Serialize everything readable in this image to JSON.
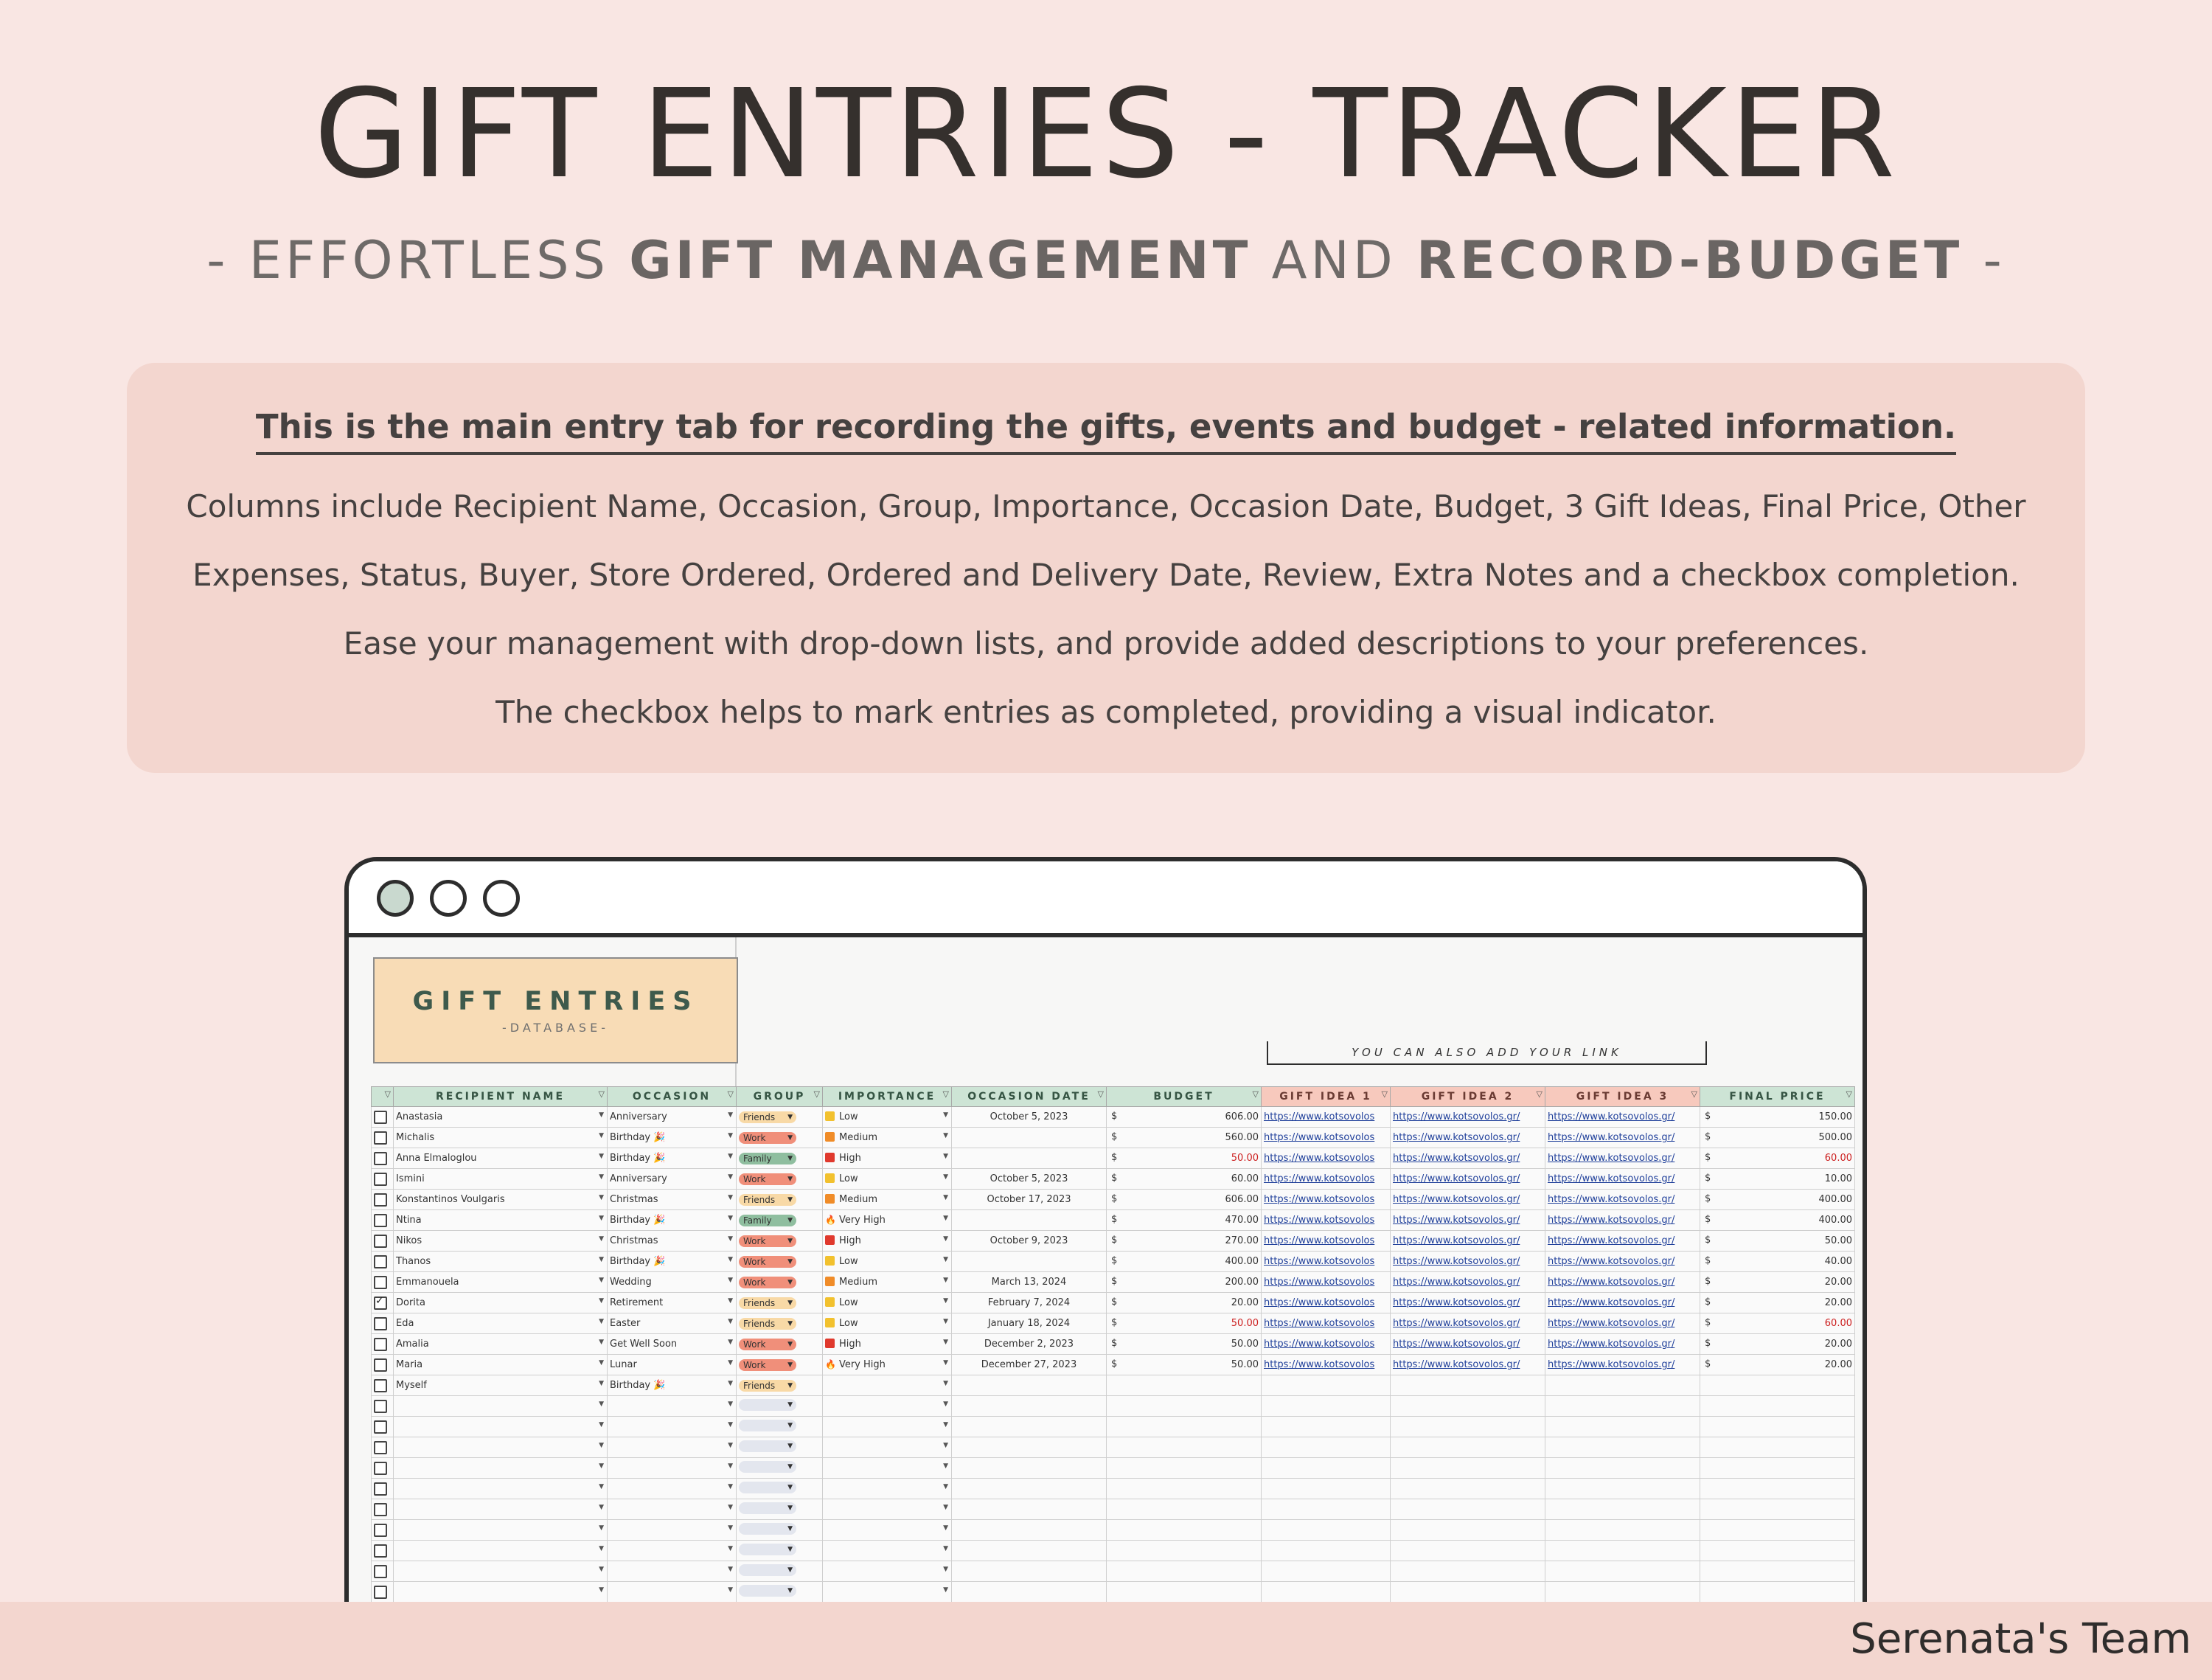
{
  "hero": {
    "title": "GIFT ENTRIES - TRACKER",
    "subtitle_pre": "- EFFORTLESS ",
    "subtitle_b1": "GIFT MANAGEMENT",
    "subtitle_mid": " AND ",
    "subtitle_b2": "RECORD-BUDGET",
    "subtitle_post": " -"
  },
  "info": {
    "heading": "This is the main entry tab for recording the gifts, events and budget - related information.",
    "lines": [
      "Columns include Recipient Name, Occasion, Group, Importance, Occasion Date, Budget, 3 Gift Ideas, Final Price, Other",
      "Expenses, Status, Buyer, Store Ordered, Ordered and Delivery Date, Review, Extra Notes and a checkbox completion.",
      "Ease your management with drop-down lists, and provide added descriptions to your preferences.",
      "The checkbox helps to mark entries as completed, providing a visual indicator."
    ]
  },
  "sheet": {
    "logo_title": "GIFT ENTRIES",
    "logo_sub": "-DATABASE-",
    "link_note": "YOU CAN ALSO ADD YOUR LINK",
    "headers": [
      "RECIPIENT NAME",
      "OCCASION",
      "GROUP",
      "IMPORTANCE",
      "OCCASION DATE",
      "BUDGET",
      "GIFT IDEA 1",
      "GIFT IDEA 2",
      "GIFT IDEA 3",
      "FINAL PRICE"
    ],
    "currency": "$",
    "link_text": "https://www.kotsovolos.gr/",
    "link_text_short": "https://www.kotsovolos",
    "rows": [
      {
        "done": false,
        "name": "Anastasia",
        "occasion": "Anniversary",
        "group": "Friends",
        "importance": "Low",
        "date": "October 5, 2023",
        "budget": "606.00",
        "final": "150.00",
        "budget_red": false,
        "final_red": false
      },
      {
        "done": false,
        "name": "Michalis",
        "occasion": "Birthday 🎉",
        "group": "Work",
        "importance": "Medium",
        "date": "",
        "budget": "560.00",
        "final": "500.00",
        "budget_red": false,
        "final_red": false
      },
      {
        "done": false,
        "name": "Anna Elmaloglou",
        "occasion": "Birthday 🎉",
        "group": "Family",
        "importance": "High",
        "date": "",
        "budget": "50.00",
        "final": "60.00",
        "budget_red": true,
        "final_red": true
      },
      {
        "done": false,
        "name": "Ismini",
        "occasion": "Anniversary",
        "group": "Work",
        "importance": "Low",
        "date": "October 5, 2023",
        "budget": "60.00",
        "final": "10.00",
        "budget_red": false,
        "final_red": false
      },
      {
        "done": false,
        "name": "Konstantinos Voulgaris",
        "occasion": "Christmas",
        "group": "Friends",
        "importance": "Medium",
        "date": "October 17, 2023",
        "budget": "606.00",
        "final": "400.00",
        "budget_red": false,
        "final_red": false
      },
      {
        "done": false,
        "name": "Ntina",
        "occasion": "Birthday 🎉",
        "group": "Family",
        "importance": "Very High",
        "date": "",
        "budget": "470.00",
        "final": "400.00",
        "budget_red": false,
        "final_red": false
      },
      {
        "done": false,
        "name": "Nikos",
        "occasion": "Christmas",
        "group": "Work",
        "importance": "High",
        "date": "October 9, 2023",
        "budget": "270.00",
        "final": "50.00",
        "budget_red": false,
        "final_red": false
      },
      {
        "done": false,
        "name": "Thanos",
        "occasion": "Birthday 🎉",
        "group": "Work",
        "importance": "Low",
        "date": "",
        "budget": "400.00",
        "final": "40.00",
        "budget_red": false,
        "final_red": false
      },
      {
        "done": false,
        "name": "Emmanouela",
        "occasion": "Wedding",
        "group": "Work",
        "importance": "Medium",
        "date": "March 13, 2024",
        "budget": "200.00",
        "final": "20.00",
        "budget_red": false,
        "final_red": false
      },
      {
        "done": true,
        "name": "Dorita",
        "occasion": "Retirement",
        "group": "Friends",
        "importance": "Low",
        "date": "February 7, 2024",
        "budget": "20.00",
        "final": "20.00",
        "budget_red": false,
        "final_red": false
      },
      {
        "done": false,
        "name": "Eda",
        "occasion": "Easter",
        "group": "Friends",
        "importance": "Low",
        "date": "January 18, 2024",
        "budget": "50.00",
        "final": "60.00",
        "budget_red": true,
        "final_red": true
      },
      {
        "done": false,
        "name": "Amalia",
        "occasion": "Get Well Soon",
        "group": "Work",
        "importance": "High",
        "date": "December 2, 2023",
        "budget": "50.00",
        "final": "20.00",
        "budget_red": false,
        "final_red": false
      },
      {
        "done": false,
        "name": "Maria",
        "occasion": "Lunar",
        "group": "Work",
        "importance": "Very High",
        "date": "December 27, 2023",
        "budget": "50.00",
        "final": "20.00",
        "budget_red": false,
        "final_red": false
      },
      {
        "done": false,
        "name": "Myself",
        "occasion": "Birthday 🎉",
        "group": "Friends",
        "importance": "",
        "date": "",
        "budget": "",
        "final": "",
        "budget_red": false,
        "final_red": false
      }
    ],
    "empty_rows": 10
  },
  "colors": {
    "group": {
      "Friends": "#f8d9a6",
      "Work": "#f08f7a",
      "Family": "#8fbe9f",
      "empty": "#e3e6ee"
    },
    "importance": {
      "Low": "#f2c12e",
      "Medium": "#f08c28",
      "High": "#e0392d",
      "Very High": "#e0392d"
    },
    "accent_green": "#cde4d5",
    "accent_pink": "#f7c9bd"
  },
  "footer": {
    "credit": "Serenata's Team"
  }
}
